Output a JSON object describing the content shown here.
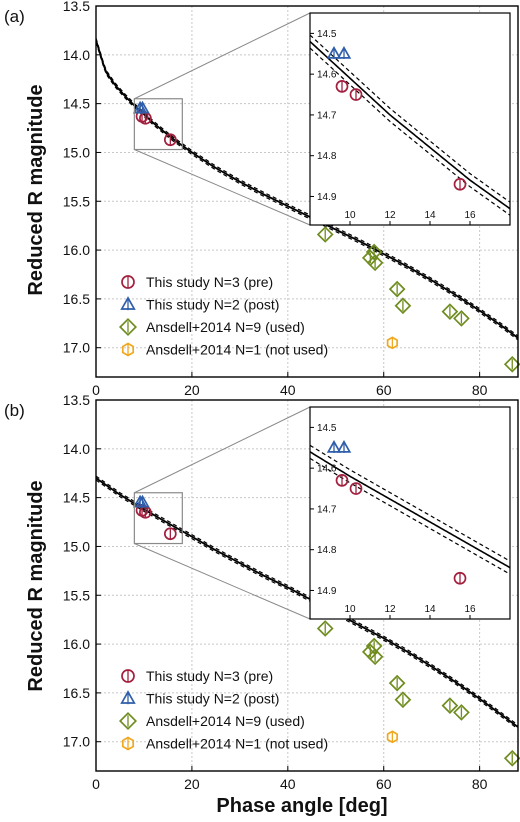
{
  "colors": {
    "pre": "#a3203f",
    "post": "#2f5faa",
    "used": "#6f8c1f",
    "notused": "#f0a820",
    "model": "#000000",
    "grid": "#c8c8c8",
    "zoombox": "#8a8a8a"
  },
  "panel_labels": [
    "(a)",
    "(b)"
  ],
  "xlabel": "Phase angle [deg]",
  "ylabel": "Reduced R magnitude",
  "legend": [
    "This study N=3 (pre)",
    "This study N=2 (post)",
    "Ansdell+2014 N=9 (used)",
    "Ansdell+2014 N=1 (not used)"
  ],
  "chart_data": [
    {
      "type": "scatter",
      "panel": "(a)",
      "xlabel": "",
      "ylabel": "Reduced R magnitude",
      "xlim": [
        0,
        88
      ],
      "ylim": [
        13.5,
        17.3
      ],
      "y_inverted": true,
      "grid": true,
      "legend_position": "bottom-left",
      "xticks": [
        0,
        20,
        40,
        60,
        80
      ],
      "yticks": [
        "13.5",
        "14.0",
        "14.5",
        "15.0",
        "15.5",
        "16.0",
        "16.5",
        "17.0"
      ],
      "series": [
        {
          "name": "This study N=3 (pre)",
          "marker": "circle",
          "x": [
            9.6,
            10.3,
            15.5
          ],
          "y": [
            14.63,
            14.65,
            14.87
          ]
        },
        {
          "name": "This study N=2 (post)",
          "marker": "triangle",
          "x": [
            9.2,
            9.7
          ],
          "y": [
            14.55,
            14.55
          ]
        },
        {
          "name": "Ansdell+2014 N=9 (used)",
          "marker": "diamond",
          "x": [
            47.8,
            57.2,
            58.0,
            58.2,
            62.8,
            64.0,
            73.8,
            76.2,
            86.8
          ],
          "y": [
            15.84,
            16.08,
            16.02,
            16.13,
            16.4,
            16.57,
            16.63,
            16.7,
            17.17
          ]
        },
        {
          "name": "Ansdell+2014 N=1 (not used)",
          "marker": "hexagon",
          "x": [
            61.8
          ],
          "y": [
            16.95
          ]
        }
      ],
      "model": {
        "type": "curve",
        "x": [
          0,
          2,
          4,
          6,
          8,
          10,
          12,
          14,
          16,
          18,
          20,
          25,
          30,
          35,
          40,
          45,
          50,
          55,
          60,
          65,
          70,
          75,
          80,
          85,
          88
        ],
        "y": [
          13.85,
          14.17,
          14.31,
          14.42,
          14.52,
          14.61,
          14.7,
          14.78,
          14.86,
          14.93,
          15.0,
          15.16,
          15.3,
          15.43,
          15.55,
          15.67,
          15.79,
          15.91,
          16.04,
          16.17,
          16.31,
          16.46,
          16.62,
          16.79,
          16.9
        ]
      },
      "inset": {
        "xlim": [
          8,
          18
        ],
        "ylim": [
          14.45,
          14.97
        ],
        "xticks": [
          "10",
          "12",
          "14",
          "16"
        ],
        "yticks": [
          "14.5",
          "14.6",
          "14.7",
          "14.8",
          "14.9"
        ]
      }
    },
    {
      "type": "scatter",
      "panel": "(b)",
      "xlabel": "Phase angle [deg]",
      "ylabel": "Reduced R magnitude",
      "xlim": [
        0,
        88
      ],
      "ylim": [
        13.5,
        17.3
      ],
      "y_inverted": true,
      "grid": true,
      "legend_position": "bottom-left",
      "xticks": [
        0,
        20,
        40,
        60,
        80
      ],
      "yticks": [
        "13.5",
        "14.0",
        "14.5",
        "15.0",
        "15.5",
        "16.0",
        "16.5",
        "17.0"
      ],
      "series": [
        {
          "name": "This study N=3 (pre)",
          "marker": "circle",
          "x": [
            9.6,
            10.3,
            15.5
          ],
          "y": [
            14.63,
            14.65,
            14.87
          ]
        },
        {
          "name": "This study N=2 (post)",
          "marker": "triangle",
          "x": [
            9.2,
            9.7
          ],
          "y": [
            14.55,
            14.55
          ]
        },
        {
          "name": "Ansdell+2014 N=9 (used)",
          "marker": "diamond",
          "x": [
            47.8,
            57.2,
            58.0,
            58.2,
            62.8,
            64.0,
            73.8,
            76.2,
            86.8
          ],
          "y": [
            15.84,
            16.08,
            16.02,
            16.13,
            16.4,
            16.57,
            16.63,
            16.7,
            17.17
          ]
        },
        {
          "name": "Ansdell+2014 N=1 (not used)",
          "marker": "hexagon",
          "x": [
            61.8
          ],
          "y": [
            16.95
          ]
        }
      ],
      "model": {
        "type": "curve",
        "x": [
          0,
          5,
          10,
          15,
          20,
          25,
          30,
          35,
          40,
          45,
          50,
          55,
          60,
          65,
          70,
          75,
          80,
          85,
          88
        ],
        "y": [
          14.3,
          14.47,
          14.62,
          14.76,
          14.9,
          15.04,
          15.17,
          15.3,
          15.42,
          15.55,
          15.68,
          15.81,
          15.94,
          16.08,
          16.23,
          16.39,
          16.56,
          16.74,
          16.85
        ]
      },
      "inset": {
        "xlim": [
          8,
          18
        ],
        "ylim": [
          14.45,
          14.97
        ],
        "xticks": [
          "10",
          "12",
          "14",
          "16"
        ],
        "yticks": [
          "14.5",
          "14.6",
          "14.7",
          "14.8",
          "14.9"
        ]
      }
    }
  ]
}
